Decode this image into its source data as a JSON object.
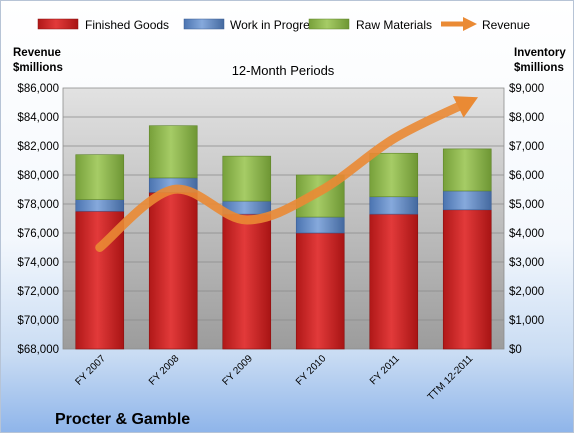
{
  "company": "Procter & Gamble",
  "chart_data": {
    "type": "bar",
    "stacked": true,
    "title": "12-Month Periods",
    "categories": [
      "FY 2007",
      "FY 2008",
      "FY 2009",
      "FY 2010",
      "FY 2011",
      "TTM 12-2011"
    ],
    "series": [
      {
        "name": "Finished Goods",
        "axis": "right",
        "color": "#cc2020",
        "values": [
          4750,
          5400,
          4650,
          4000,
          4650,
          4800
        ]
      },
      {
        "name": "Work in Progress",
        "axis": "right",
        "color": "#5b86c6",
        "values": [
          400,
          500,
          450,
          550,
          600,
          650
        ]
      },
      {
        "name": "Raw Materials",
        "axis": "right",
        "color": "#8cb44c",
        "values": [
          1550,
          1800,
          1550,
          1450,
          1500,
          1450
        ]
      }
    ],
    "line_series": {
      "name": "Revenue",
      "axis": "left",
      "color": "#ea8a34",
      "values": [
        75000,
        79000,
        76900,
        78900,
        82500,
        85000
      ]
    },
    "left_axis": {
      "label_line1": "Revenue",
      "label_line2": "$millions",
      "ylim": [
        68000,
        86000
      ],
      "ticks": [
        "$68,000",
        "$70,000",
        "$72,000",
        "$74,000",
        "$76,000",
        "$78,000",
        "$80,000",
        "$82,000",
        "$84,000",
        "$86,000"
      ]
    },
    "right_axis": {
      "label_line1": "Inventory",
      "label_line2": "$millions",
      "ylim": [
        0,
        9000
      ],
      "ticks": [
        "$0",
        "$1,000",
        "$2,000",
        "$3,000",
        "$4,000",
        "$5,000",
        "$6,000",
        "$7,000",
        "$8,000",
        "$9,000"
      ]
    },
    "legend_position": "top",
    "grid": true
  }
}
